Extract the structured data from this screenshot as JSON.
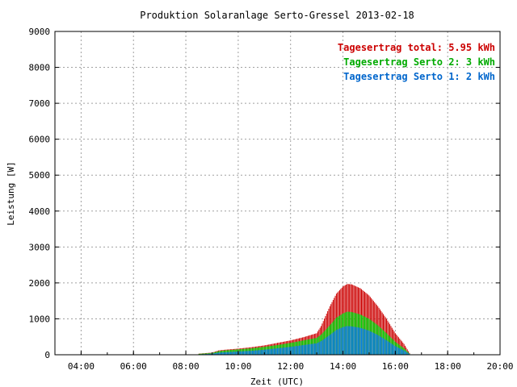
{
  "chart_data": {
    "type": "bar",
    "title": "Produktion Solaranlage Serto-Gressel 2013-02-18",
    "xlabel": "Zeit (UTC)",
    "ylabel": "Leistung [W]",
    "xlim": [
      "03:00",
      "20:00"
    ],
    "ylim": [
      0,
      9000
    ],
    "yticks": [
      0,
      1000,
      2000,
      3000,
      4000,
      5000,
      6000,
      7000,
      8000,
      9000
    ],
    "xticks": [
      "04:00",
      "06:00",
      "08:00",
      "10:00",
      "12:00",
      "14:00",
      "16:00",
      "18:00",
      "20:00"
    ],
    "grid": true,
    "legend_position": "top-right",
    "legend": [
      {
        "text": "Tagesertrag total: 5.95 kWh",
        "color": "#cc0000"
      },
      {
        "text": "Tagesertrag Serto 2: 3 kWh",
        "color": "#00aa00"
      },
      {
        "text": "Tagesertrag Serto 1: 2 kWh",
        "color": "#0066cc"
      }
    ],
    "series_colors": {
      "total": "#cc0000",
      "serto2": "#00cc00",
      "serto1": "#0080dd"
    },
    "samples": [
      {
        "time": "08:30",
        "total": 30,
        "serto2": 25,
        "serto1": 10
      },
      {
        "time": "09:00",
        "total": 60,
        "serto2": 50,
        "serto1": 30
      },
      {
        "time": "09:15",
        "total": 120,
        "serto2": 100,
        "serto1": 60
      },
      {
        "time": "09:30",
        "total": 140,
        "serto2": 120,
        "serto1": 70
      },
      {
        "time": "10:00",
        "total": 170,
        "serto2": 150,
        "serto1": 90
      },
      {
        "time": "10:30",
        "total": 210,
        "serto2": 180,
        "serto1": 110
      },
      {
        "time": "11:00",
        "total": 260,
        "serto2": 220,
        "serto1": 140
      },
      {
        "time": "11:30",
        "total": 330,
        "serto2": 270,
        "serto1": 180
      },
      {
        "time": "12:00",
        "total": 400,
        "serto2": 330,
        "serto1": 220
      },
      {
        "time": "12:30",
        "total": 490,
        "serto2": 400,
        "serto1": 270
      },
      {
        "time": "13:00",
        "total": 600,
        "serto2": 470,
        "serto1": 320
      },
      {
        "time": "13:10",
        "total": 800,
        "serto2": 560,
        "serto1": 380
      },
      {
        "time": "13:30",
        "total": 1350,
        "serto2": 820,
        "serto1": 550
      },
      {
        "time": "13:45",
        "total": 1700,
        "serto2": 1030,
        "serto1": 690
      },
      {
        "time": "14:00",
        "total": 1900,
        "serto2": 1150,
        "serto1": 770
      },
      {
        "time": "14:10",
        "total": 1970,
        "serto2": 1200,
        "serto1": 800
      },
      {
        "time": "14:20",
        "total": 1960,
        "serto2": 1190,
        "serto1": 790
      },
      {
        "time": "14:40",
        "total": 1850,
        "serto2": 1120,
        "serto1": 750
      },
      {
        "time": "15:00",
        "total": 1650,
        "serto2": 1000,
        "serto1": 670
      },
      {
        "time": "15:20",
        "total": 1350,
        "serto2": 820,
        "serto1": 550
      },
      {
        "time": "15:40",
        "total": 1000,
        "serto2": 600,
        "serto1": 400
      },
      {
        "time": "16:00",
        "total": 600,
        "serto2": 360,
        "serto1": 240
      },
      {
        "time": "16:20",
        "total": 300,
        "serto2": 180,
        "serto1": 120
      },
      {
        "time": "16:30",
        "total": 100,
        "serto2": 60,
        "serto1": 40
      },
      {
        "time": "16:35",
        "total": 0,
        "serto2": 0,
        "serto1": 0
      }
    ]
  }
}
